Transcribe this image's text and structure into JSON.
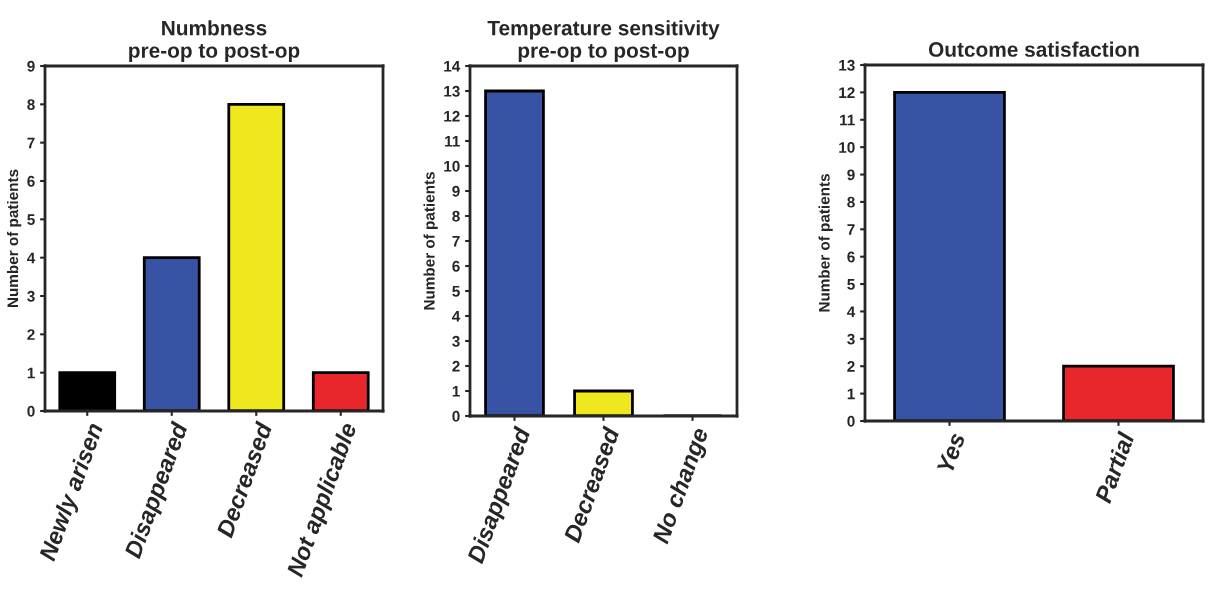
{
  "chart_data": [
    {
      "type": "bar",
      "title": "Numbness\npre-op to post-op",
      "ylabel": "Number of patients",
      "categories": [
        "Newly arisen",
        "Disappeared",
        "Decreased",
        "Not applicable"
      ],
      "values": [
        1,
        4,
        8,
        1
      ],
      "colors": [
        "#000000",
        "#3953a4",
        "#f0e81e",
        "#e8262b"
      ],
      "ylim": [
        0,
        9
      ],
      "yticks": [
        0,
        1,
        2,
        3,
        4,
        5,
        6,
        7,
        8,
        9
      ],
      "grid": false,
      "legend": false
    },
    {
      "type": "bar",
      "title": "Temperature sensitivity\npre-op to post-op",
      "ylabel": "Number of patients",
      "categories": [
        "Disappeared",
        "Decreased",
        "No change"
      ],
      "values": [
        13,
        1,
        0
      ],
      "colors": [
        "#3953a4",
        "#f0e81e",
        "#000000"
      ],
      "ylim": [
        0,
        14
      ],
      "yticks": [
        0,
        1,
        2,
        3,
        4,
        5,
        6,
        7,
        8,
        9,
        10,
        11,
        12,
        13,
        14
      ],
      "grid": false,
      "legend": false
    },
    {
      "type": "bar",
      "title": "Outcome satisfaction",
      "ylabel": "Number of patients",
      "categories": [
        "Yes",
        "Partial"
      ],
      "values": [
        12,
        2
      ],
      "colors": [
        "#3953a4",
        "#e8262b"
      ],
      "ylim": [
        0,
        13
      ],
      "yticks": [
        0,
        1,
        2,
        3,
        4,
        5,
        6,
        7,
        8,
        9,
        10,
        11,
        12,
        13
      ],
      "grid": false,
      "legend": false
    }
  ]
}
